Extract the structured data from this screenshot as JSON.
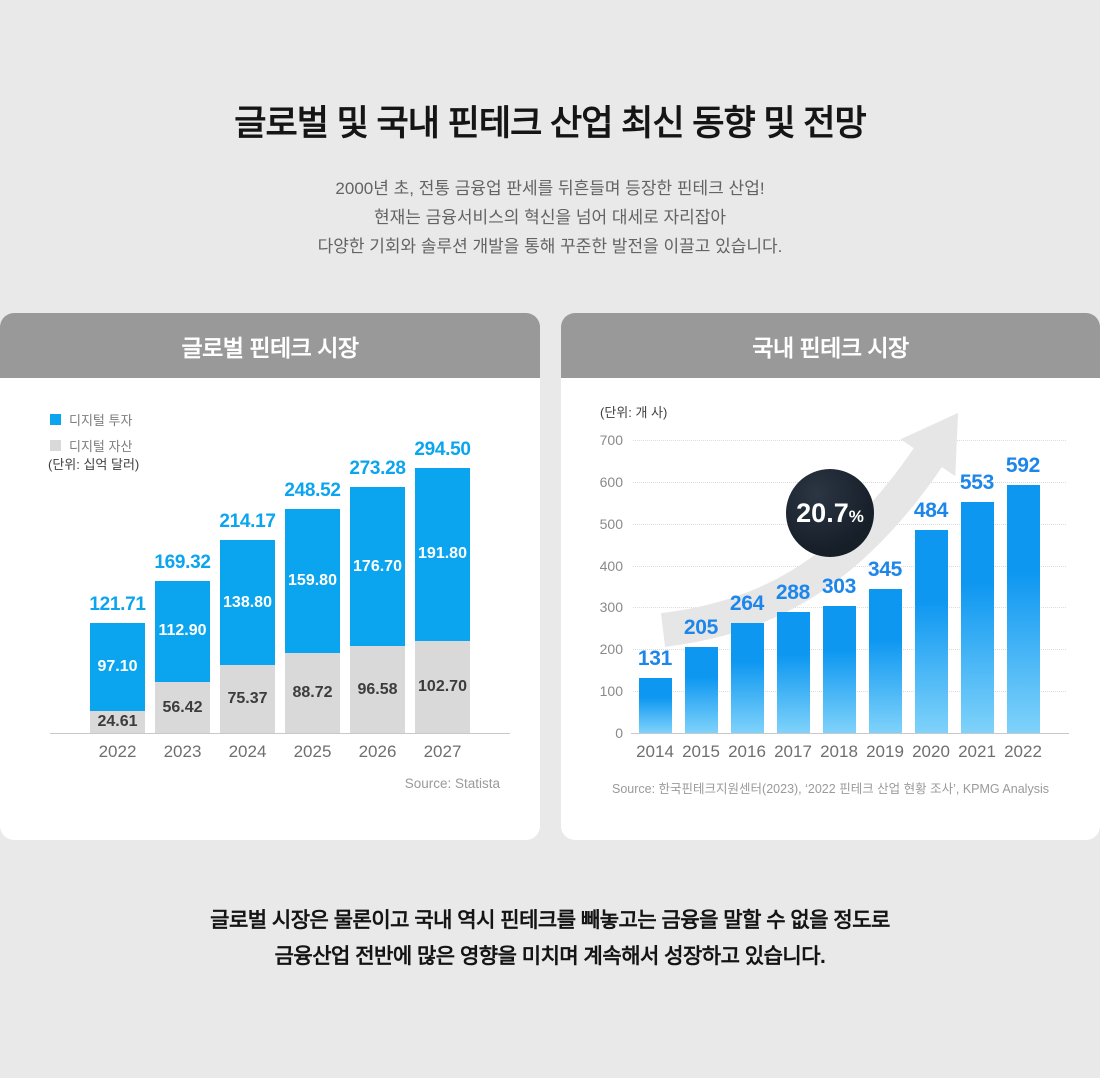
{
  "page": {
    "title": "글로벌 및 국내 핀테크 산업 최신 동향 및 전망",
    "subtitle_lines": [
      "2000년 초, 전통 금융업 판세를 뒤흔들며 등장한 핀테크 산업!",
      "현재는 금융서비스의 혁신을 넘어 대세로 자리잡아",
      "다양한 기회와 솔루션 개발을 통해 꾸준한 발전을 이끌고 있습니다."
    ],
    "footer_lines": [
      "글로벌 시장은 물론이고 국내 역시 핀테크를 빼놓고는 금융을 말할 수 없을 정도로",
      "금융산업 전반에 많은 영향을 미치며 계속해서 성장하고 있습니다."
    ]
  },
  "global": {
    "header": "글로벌 핀테크 시장",
    "unit": "(단위: 십억 달러)",
    "source": "Source: Statista"
  },
  "domestic": {
    "header": "국내 핀테크 시장",
    "unit": "(단위: 개 사)",
    "badge_value": "20.7",
    "badge_unit": "%",
    "source": "Source: 한국핀테크지원센터(2023), ‘2022 핀테크 산업 현황 조사’, KPMG Analysis"
  },
  "chart_data": [
    {
      "id": "global-fintech-market",
      "type": "bar",
      "subtype": "stacked",
      "title": "글로벌 핀테크 시장",
      "unit_label": "(단위: 십억 달러)",
      "categories": [
        "2022",
        "2023",
        "2024",
        "2025",
        "2026",
        "2027"
      ],
      "series": [
        {
          "name": "디지털 투자",
          "color": "#0ba5ef",
          "label_color": "#ffffff",
          "values": [
            "97.10",
            "112.90",
            "138.80",
            "159.80",
            "176.70",
            "191.80"
          ]
        },
        {
          "name": "디지털 자산",
          "color": "#d9d9d9",
          "label_color": "#3c3c3c",
          "values": [
            "24.61",
            "56.42",
            "75.37",
            "88.72",
            "96.58",
            "102.70"
          ]
        }
      ],
      "totals": [
        "121.71",
        "169.32",
        "214.17",
        "248.52",
        "273.28",
        "294.50"
      ],
      "total_label_color": "#0ba5ef",
      "legend_position": "top-left",
      "grid": "off",
      "ylim": [
        0,
        300
      ],
      "source": "Source: Statista"
    },
    {
      "id": "domestic-fintech-market",
      "type": "bar",
      "title": "국내 핀테크 시장",
      "unit_label": "(단위: 개 사)",
      "categories": [
        "2014",
        "2015",
        "2016",
        "2017",
        "2018",
        "2019",
        "2020",
        "2021",
        "2022"
      ],
      "values": [
        131,
        205,
        264,
        288,
        303,
        345,
        484,
        553,
        592
      ],
      "bar_gradient_top": "#0d97f1",
      "bar_gradient_bottom": "#7fd2fa",
      "value_label_color": "#1d86ea",
      "yticks": [
        0,
        100,
        200,
        300,
        400,
        500,
        600,
        700
      ],
      "ylim": [
        0,
        700
      ],
      "grid": "dotted-horizontal",
      "annotation": {
        "text": "20.7%",
        "shape": "dark-circle-badge",
        "extra": "upward-arrow"
      },
      "source": "Source: 한국핀테크지원센터(2023), ‘2022 핀테크 산업 현황 조사’, KPMG Analysis"
    }
  ]
}
